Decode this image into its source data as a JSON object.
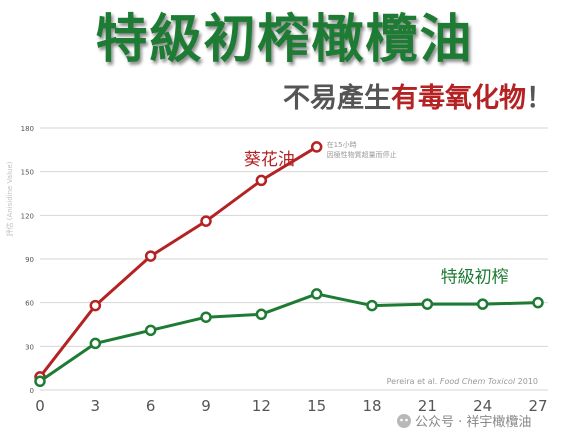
{
  "header": {
    "title": "特級初榨橄欖油",
    "subtitle_part1": "不易產生",
    "subtitle_part2": "有毒氧化物",
    "subtitle_part3": "！"
  },
  "chart_data": {
    "type": "line",
    "ylabel": "評估 (Anisidine Value)",
    "xlim": [
      0,
      27
    ],
    "ylim": [
      0,
      180
    ],
    "x_ticks": [
      0,
      3,
      6,
      9,
      12,
      15,
      18,
      21,
      24,
      27
    ],
    "y_ticks": [
      0,
      30,
      60,
      90,
      120,
      150,
      180
    ],
    "grid": true,
    "series": [
      {
        "name": "葵花油",
        "color": "#b42223",
        "x": [
          0,
          3,
          6,
          9,
          12,
          15
        ],
        "y": [
          9,
          58,
          92,
          116,
          144,
          167
        ]
      },
      {
        "name": "特級初榨",
        "color": "#1e7b34",
        "x": [
          0,
          3,
          6,
          9,
          12,
          15,
          18,
          21,
          24,
          27
        ],
        "y": [
          6,
          32,
          41,
          50,
          52,
          66,
          58,
          59,
          59,
          60
        ]
      }
    ],
    "annotation_line1": "在15小時",
    "annotation_line2": "因極性物質超量而停止",
    "citation_prefix": "Pereira et al. ",
    "citation_journal": "Food Chem Toxicol",
    "citation_year": " 2010"
  },
  "watermark": {
    "text": "公众号 · 祥宇橄欖油"
  }
}
